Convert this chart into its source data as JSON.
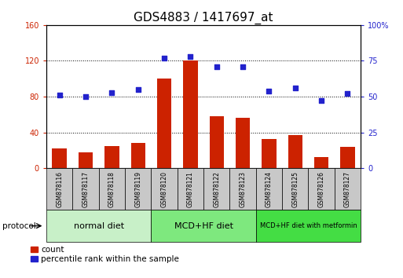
{
  "title": "GDS4883 / 1417697_at",
  "samples": [
    "GSM878116",
    "GSM878117",
    "GSM878118",
    "GSM878119",
    "GSM878120",
    "GSM878121",
    "GSM878122",
    "GSM878123",
    "GSM878124",
    "GSM878125",
    "GSM878126",
    "GSM878127"
  ],
  "counts": [
    22,
    18,
    25,
    28,
    100,
    120,
    58,
    56,
    33,
    37,
    12,
    24
  ],
  "percentiles": [
    51,
    50,
    53,
    55,
    77,
    78,
    71,
    71,
    54,
    56,
    47,
    52
  ],
  "groups": [
    {
      "label": "normal diet",
      "start": 0,
      "end": 4,
      "color": "#c8f0c8"
    },
    {
      "label": "MCD+HF diet",
      "start": 4,
      "end": 8,
      "color": "#7ee87e"
    },
    {
      "label": "MCD+HF diet with metformin",
      "start": 8,
      "end": 12,
      "color": "#44dd44"
    }
  ],
  "ylim_left": [
    0,
    160
  ],
  "ylim_right": [
    0,
    100
  ],
  "yticks_left": [
    0,
    40,
    80,
    120,
    160
  ],
  "yticks_right": [
    0,
    25,
    50,
    75,
    100
  ],
  "yticklabels_left": [
    "0",
    "40",
    "80",
    "120",
    "160"
  ],
  "yticklabels_right": [
    "0",
    "25",
    "50",
    "75",
    "100%"
  ],
  "yticklabel_right_top": "100%",
  "bar_color": "#cc2200",
  "dot_color": "#2222cc",
  "grid_color": "black",
  "title_fontsize": 11,
  "tick_fontsize": 7,
  "group_label_fontsize": 8,
  "legend_fontsize": 7.5,
  "sample_label_fontsize": 5.5
}
